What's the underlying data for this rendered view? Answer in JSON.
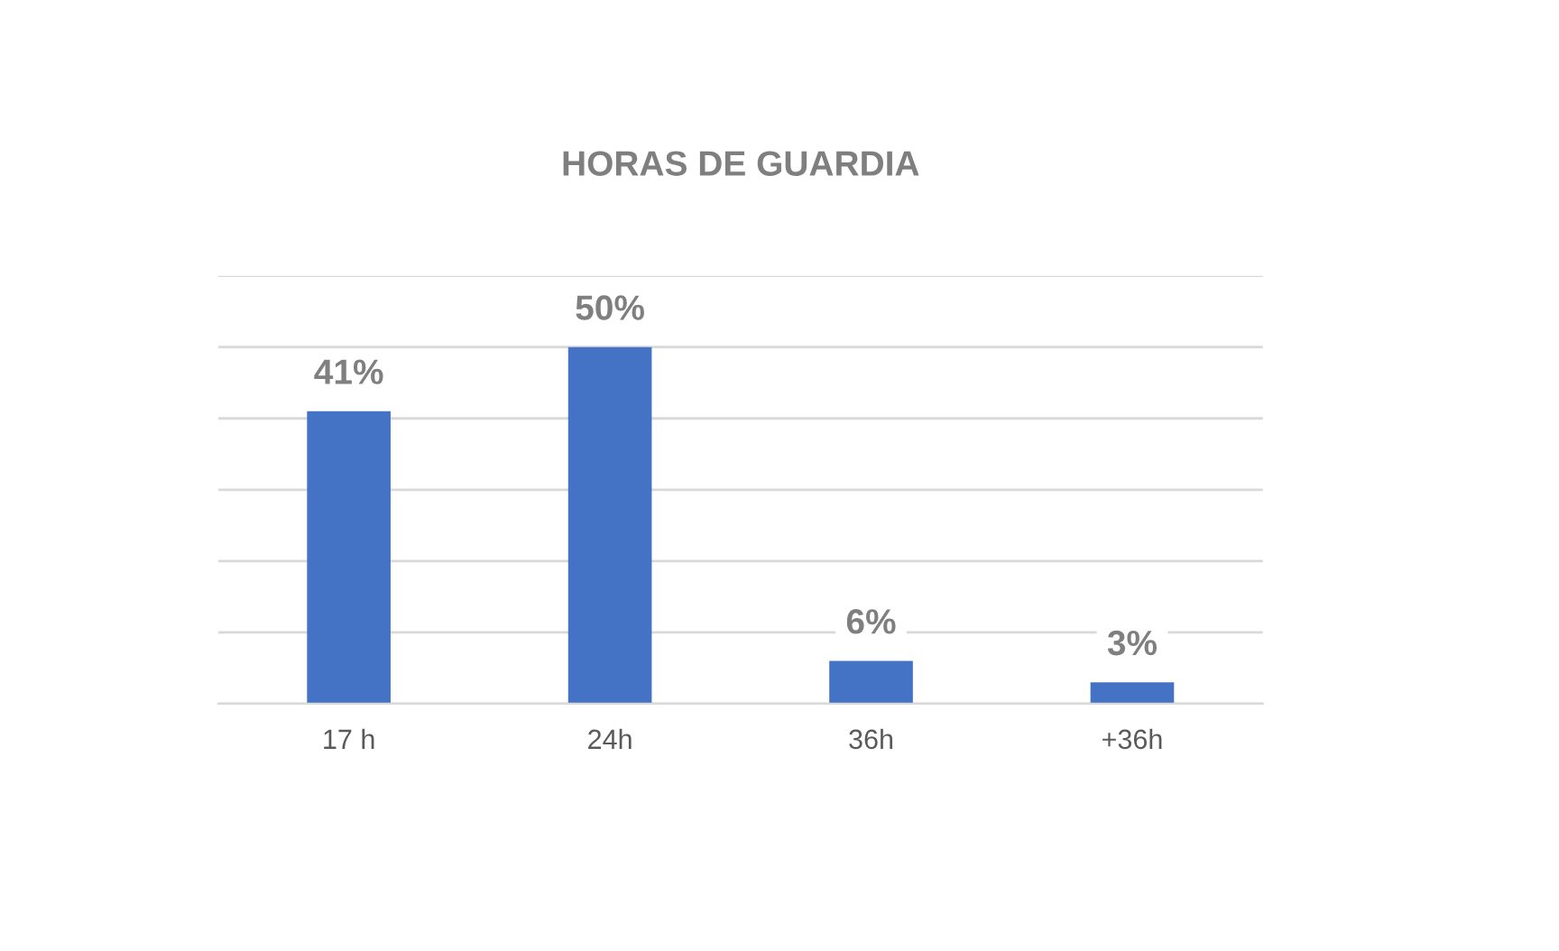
{
  "chart_data": {
    "type": "bar",
    "title": "HORAS DE GUARDIA",
    "categories": [
      "17 h",
      "24h",
      "36h",
      "+36h"
    ],
    "values": [
      41,
      50,
      6,
      3
    ],
    "value_labels": [
      "41%",
      "50%",
      "6%",
      "3%"
    ],
    "color": "#4472c4",
    "ylim": [
      0,
      60
    ],
    "yticks": [
      {
        "value": 0,
        "label": null
      },
      {
        "value": 10,
        "label": null
      },
      {
        "value": 20,
        "label": null
      },
      {
        "value": 30,
        "label": null
      },
      {
        "value": 40,
        "label": null
      },
      {
        "value": 50,
        "label": null
      },
      {
        "value": 60,
        "label": null
      }
    ],
    "tick_labels": "x",
    "grid": "y"
  }
}
